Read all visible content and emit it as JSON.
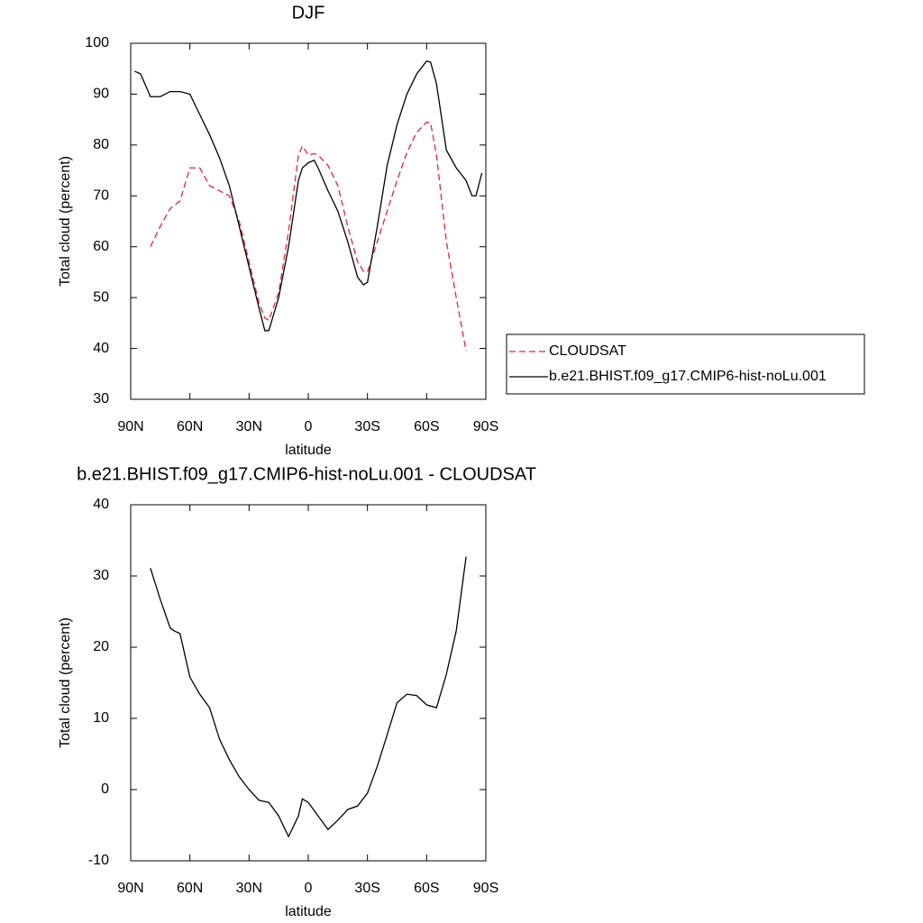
{
  "chart_data": [
    {
      "type": "line",
      "title": "DJF",
      "xlabel": "latitude",
      "ylabel": "Total cloud (percent)",
      "x": [
        88,
        85,
        80,
        75,
        70,
        65,
        60,
        55,
        50,
        45,
        40,
        35,
        30,
        25,
        22,
        20,
        15,
        10,
        5,
        3,
        0,
        -3,
        -5,
        -10,
        -15,
        -20,
        -25,
        -28,
        -30,
        -35,
        -40,
        -45,
        -50,
        -55,
        -60,
        -62,
        -65,
        -70,
        -75,
        -80,
        -83,
        -85,
        -88
      ],
      "series": [
        {
          "name": "CLOUDSAT",
          "color": "#e8262a",
          "line_style": "dashed",
          "values": [
            null,
            null,
            60,
            64,
            67.5,
            69,
            75.5,
            75.5,
            72,
            71,
            70,
            65,
            57,
            49,
            46,
            45.5,
            51,
            63,
            78,
            79.8,
            78,
            78.3,
            78,
            76,
            72,
            64,
            57,
            55.2,
            55,
            61,
            67,
            73,
            78.5,
            82.5,
            84.5,
            84.3,
            78,
            61,
            50,
            39.5,
            null,
            null,
            null
          ]
        },
        {
          "name": "b.e21.BHIST.f09_g17.CMIP6-hist-noLu.001",
          "color": "#000000",
          "line_style": "solid",
          "values": [
            94.5,
            94,
            89.5,
            89.5,
            90.5,
            90.5,
            90,
            86,
            82,
            77.5,
            72,
            64,
            56,
            48,
            43.5,
            43.5,
            50,
            60,
            73,
            75.5,
            76.5,
            77,
            75.5,
            71,
            67,
            61,
            54,
            52.5,
            53,
            64,
            76,
            84,
            90,
            94,
            96.5,
            96.3,
            92,
            79,
            75.5,
            73,
            70,
            70,
            74.5
          ]
        }
      ],
      "xlim": [
        90,
        -90
      ],
      "xticks": [
        {
          "value": 90,
          "label": "90N"
        },
        {
          "value": 60,
          "label": "60N"
        },
        {
          "value": 30,
          "label": "30N"
        },
        0,
        {
          "value": -30,
          "label": "30S"
        },
        {
          "value": -60,
          "label": "60S"
        },
        {
          "value": -90,
          "label": "90S"
        }
      ],
      "ylim": [
        30,
        100
      ],
      "yticks": [
        30,
        40,
        50,
        60,
        70,
        80,
        90,
        100
      ],
      "legend": "right"
    },
    {
      "type": "line",
      "title": "b.e21.BHIST.f09_g17.CMIP6-hist-noLu.001 - CLOUDSAT",
      "xlabel": "latitude",
      "ylabel": "Total cloud (percent)",
      "x": [
        80,
        75,
        70,
        68,
        65,
        60,
        55,
        50,
        45,
        40,
        35,
        30,
        25,
        20,
        15,
        10,
        5,
        3,
        0,
        -5,
        -10,
        -15,
        -20,
        -25,
        -30,
        -35,
        -40,
        -45,
        -50,
        -55,
        -60,
        -65,
        -70,
        -75,
        -80
      ],
      "series": [
        {
          "color": "#000000",
          "line_style": "solid",
          "values": [
            31.1,
            26.7,
            22.7,
            22.3,
            21.9,
            15.8,
            13.4,
            11.5,
            7.1,
            4.2,
            1.8,
            0,
            -1.5,
            -1.8,
            -3.7,
            -6.6,
            -3.7,
            -1.3,
            -1.8,
            -3.7,
            -5.6,
            -4.3,
            -2.8,
            -2.3,
            -0.5,
            3.3,
            7.7,
            12.2,
            13.4,
            13.2,
            11.9,
            11.5,
            16.2,
            22.3,
            32.7
          ]
        }
      ],
      "xlim": [
        90,
        -90
      ],
      "xticks": [
        {
          "value": 90,
          "label": "90N"
        },
        {
          "value": 60,
          "label": "60N"
        },
        {
          "value": 30,
          "label": "30N"
        },
        0,
        {
          "value": -30,
          "label": "30S"
        },
        {
          "value": -60,
          "label": "60S"
        },
        {
          "value": -90,
          "label": "90S"
        }
      ],
      "ylim": [
        -10,
        40
      ],
      "yticks": [
        -10,
        0,
        10,
        20,
        30,
        40
      ]
    }
  ]
}
